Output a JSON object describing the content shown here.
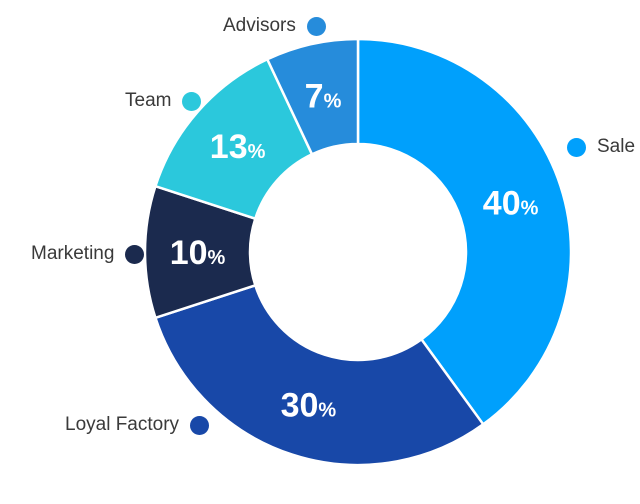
{
  "chart_data": {
    "type": "pie",
    "variant": "donut",
    "title": "",
    "slices": [
      {
        "label": "Sale",
        "value": 40,
        "color": "#00A0FC"
      },
      {
        "label": "Loyal Factory",
        "value": 30,
        "color": "#1848A8"
      },
      {
        "label": "Marketing",
        "value": 10,
        "color": "#1B2A4E"
      },
      {
        "label": "Team",
        "value": 13,
        "color": "#2BC8DC"
      },
      {
        "label": "Advisors",
        "value": 7,
        "color": "#268CDB"
      }
    ],
    "start_angle_deg": 0,
    "direction": "clockwise",
    "inner_radius_ratio": 0.507,
    "percent_suffix": "%",
    "percent_label_color": "#FFFFFF",
    "slice_separator_color": "#FFFFFF",
    "legend_text_color": "#3A3A3A",
    "legend_position": "floating-around-chart",
    "background": "#FFFFFF"
  }
}
